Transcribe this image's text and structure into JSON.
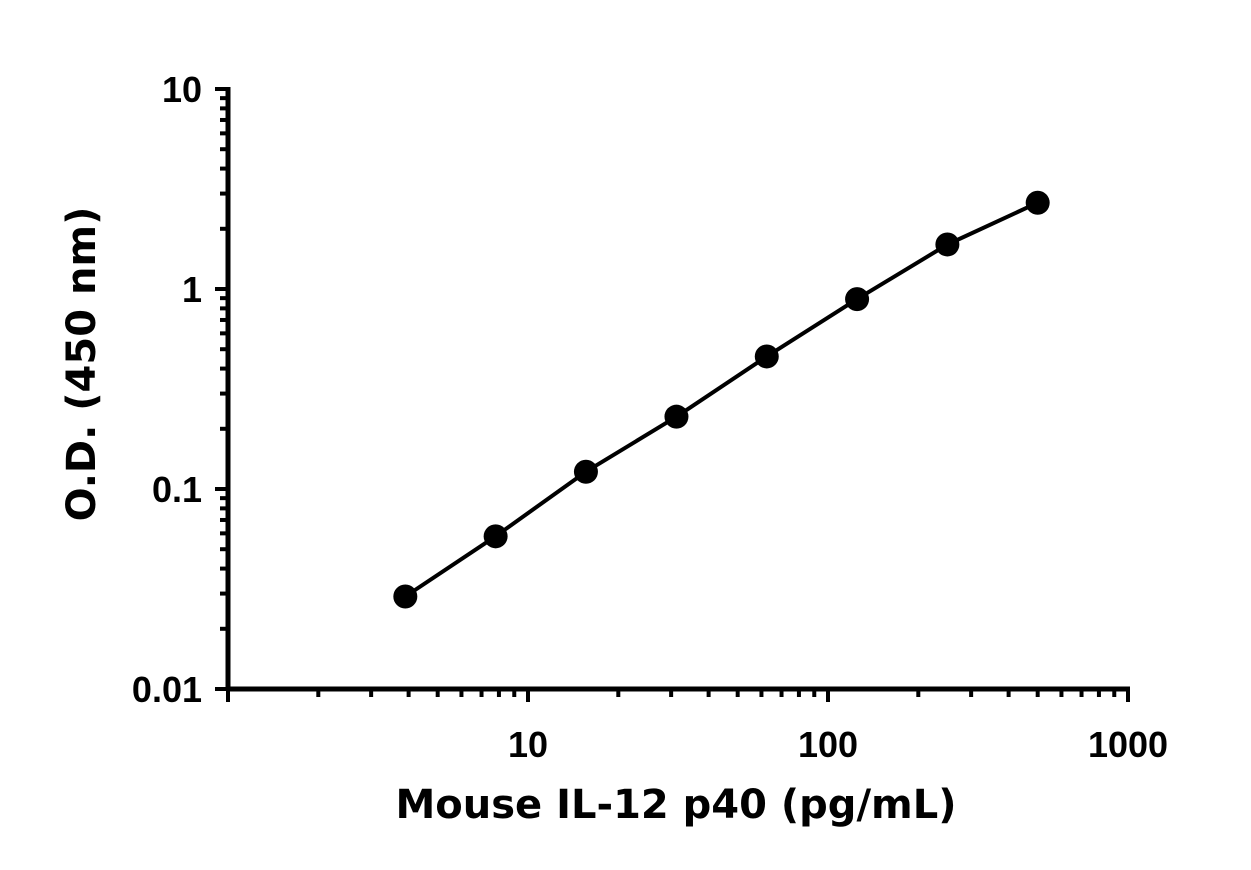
{
  "chart_data": {
    "type": "scatter",
    "title": "",
    "xlabel": "Mouse IL-12 p40 (pg/mL)",
    "ylabel": "O.D. (450 nm)",
    "xscale": "log",
    "yscale": "log",
    "xlim": [
      1,
      1000
    ],
    "ylim": [
      0.01,
      10
    ],
    "x_ticks": [
      {
        "value": 10,
        "label": "10"
      },
      {
        "value": 100,
        "label": "100"
      },
      {
        "value": 1000,
        "label": "1000"
      }
    ],
    "y_ticks": [
      {
        "value": 0.01,
        "label": "0.01"
      },
      {
        "value": 0.1,
        "label": "0.1"
      },
      {
        "value": 1,
        "label": "1"
      },
      {
        "value": 10,
        "label": "10"
      }
    ],
    "grid": false,
    "legend": "none",
    "fit_line": true,
    "series": [
      {
        "x": [
          3.9,
          7.8,
          15.6,
          31.25,
          62.5,
          125,
          250,
          500
        ],
        "y": [
          0.029,
          0.058,
          0.122,
          0.23,
          0.46,
          0.89,
          1.67,
          2.7
        ]
      }
    ],
    "colors": {
      "marker": "#000000",
      "line": "#000000",
      "axis": "#000000"
    }
  }
}
